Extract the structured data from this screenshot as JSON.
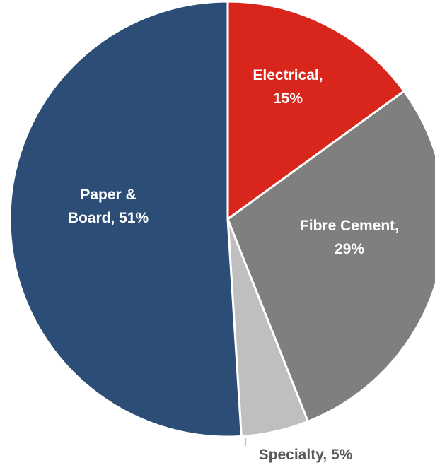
{
  "chart_data": {
    "type": "pie",
    "title": "",
    "slices": [
      {
        "name": "Electrical",
        "label_line1": "Electrical,",
        "label_line2": "15%",
        "value": 15,
        "color": "#d9261c",
        "label_color": "#ffffff"
      },
      {
        "name": "Fibre Cement",
        "label_line1": "Fibre Cement,",
        "label_line2": "29%",
        "value": 29,
        "color": "#7f7f7f",
        "label_color": "#ffffff"
      },
      {
        "name": "Specialty",
        "label_line1": "Specialty, 5%",
        "label_line2": "",
        "value": 5,
        "color": "#bfbfbf",
        "label_color": "#595959"
      },
      {
        "name": "Paper & Board",
        "label_line1": "Paper &",
        "label_line2": "Board, 51%",
        "value": 51,
        "color": "#2c4d75",
        "label_color": "#ffffff"
      }
    ],
    "start_angle": "12 o'clock",
    "direction": "clockwise",
    "legend": "none"
  }
}
